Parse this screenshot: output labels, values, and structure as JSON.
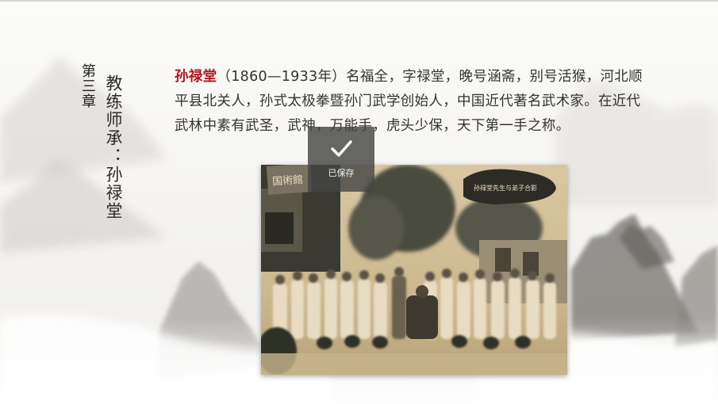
{
  "slide": {
    "chapter": "第三章",
    "subtitle": "教练师承：孙禄堂",
    "paragraph": {
      "name": "孙禄堂",
      "text": "（1860—1933年）名福全，字禄堂，晚号涵斋，别号活猴，河北顺平县北关人，孙式太极拳暨孙门武学创始人，中国近代著名武术家。在近代武林中素有武圣，武神，万能手，虎头少保，天下第一手之称。"
    },
    "photo": {
      "plaque_text": "国術館",
      "caption_cloud": "孙禄堂先生与弟子合影"
    }
  },
  "toast": {
    "icon": "check-icon",
    "label": "已保存"
  }
}
